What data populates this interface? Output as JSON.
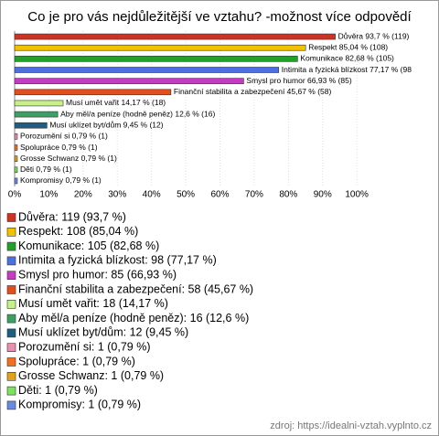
{
  "chart_data": {
    "type": "bar",
    "orientation": "horizontal",
    "title": "Co je pro vás nejdůležitější ve vztahu? -možnost více odpovědí",
    "values": [
      93.7,
      85.04,
      82.68,
      77.17,
      66.93,
      45.67,
      14.17,
      12.6,
      9.45,
      0.79,
      0.79,
      0.79,
      0.79,
      0.79
    ],
    "value_labels": [
      "Důvěra 93,7 % (119)",
      "Respekt 85,04 % (108)",
      "Komunikace 82,68 % (105)",
      "Intimita a fyzická blízkost 77,17 % (98",
      "Smysl pro humor 66,93 % (85)",
      "Finanční stabilita a zabezpečení 45,67 % (58)",
      "Musí umět vařit 14,17 % (18)",
      "Aby měl/a peníze (hodně peněz) 12,6 % (16)",
      "Musí uklízet byt/dům 9,45 % (12)",
      "Porozumění si 0,79 % (1)",
      "Spolupráce 0,79 % (1)",
      "Grosse Schwanz 0,79 % (1)",
      "Děti 0,79 % (1)",
      "Kompromisy 0,79 % (1)"
    ],
    "colors": [
      "#cc3322",
      "#f2c200",
      "#22a02a",
      "#4f6fe0",
      "#c43cc4",
      "#e0501e",
      "#c8f08a",
      "#3ca064",
      "#1f5e80",
      "#e890b0",
      "#f07020",
      "#e0a020",
      "#80e060",
      "#6a8ae0"
    ],
    "legend_labels": [
      "Důvěra: 119 (93,7 %)",
      "Respekt: 108 (85,04 %)",
      "Komunikace: 105 (82,68 %)",
      "Intimita a fyzická blízkost: 98 (77,17 %)",
      "Smysl pro humor: 85 (66,93 %)",
      "Finanční stabilita a zabezpečení: 58 (45,67 %)",
      "Musí umět vařit: 18 (14,17 %)",
      "Aby měl/a peníze (hodně peněz): 16 (12,6 %)",
      "Musí uklízet byt/dům: 12 (9,45 %)",
      "Porozumění si: 1 (0,79 %)",
      "Spolupráce: 1 (0,79 %)",
      "Grosse Schwanz: 1 (0,79 %)",
      "Děti: 1 (0,79 %)",
      "Kompromisy: 1 (0,79 %)"
    ],
    "xlim": [
      0,
      120
    ],
    "xticks": [
      {
        "value": 0,
        "label": "0%"
      },
      {
        "value": 10,
        "label": "10%"
      },
      {
        "value": 20,
        "label": "20%"
      },
      {
        "value": 30,
        "label": "30%"
      },
      {
        "value": 40,
        "label": "40%"
      },
      {
        "value": 50,
        "label": "50%"
      },
      {
        "value": 60,
        "label": "60%"
      },
      {
        "value": 70,
        "label": "70%"
      },
      {
        "value": 80,
        "label": "80%"
      },
      {
        "value": 90,
        "label": "90%"
      },
      {
        "value": 100,
        "label": "100%"
      }
    ],
    "grid": true,
    "source": "zdroj: https://idealni-vztah.vyplnto.cz"
  }
}
